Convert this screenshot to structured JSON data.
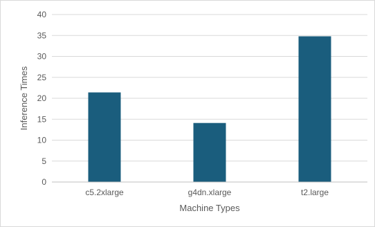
{
  "chart_data": {
    "type": "bar",
    "categories": [
      "c5.2xlarge",
      "g4dn.xlarge",
      "t2.large"
    ],
    "values": [
      21.4,
      14.1,
      34.8
    ],
    "title": "",
    "xlabel": "Machine Types",
    "ylabel": "Inference Times",
    "ylim": [
      0,
      40
    ],
    "yticks": [
      "0",
      "5",
      "10",
      "15",
      "20",
      "25",
      "30",
      "35",
      "40"
    ],
    "grid": true,
    "legend": "none",
    "colors": {
      "bar": "#1a5d7d",
      "grid": "#d9d9d9",
      "axis": "#bfbfbf",
      "text": "#595959"
    }
  }
}
